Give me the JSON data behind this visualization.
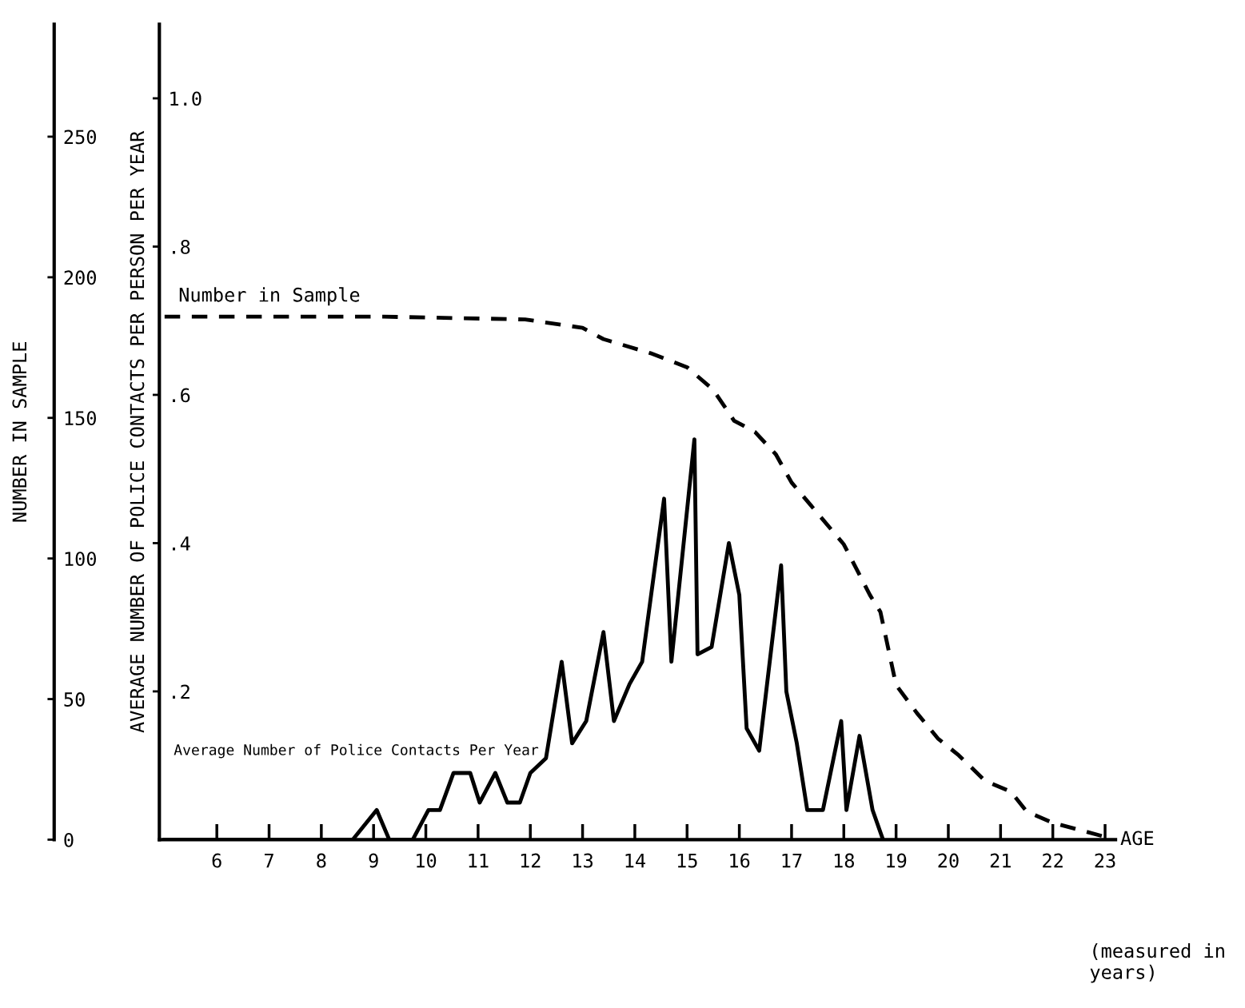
{
  "chart_data": {
    "type": "line",
    "xlabel": "AGE",
    "ylabel": "AVERAGE NUMBER OF POLICE CONTACTS PER PERSON PER YEAR",
    "y2label": "NUMBER IN SAMPLE",
    "annotations": [
      "(measured in years)"
    ],
    "xlim": [
      4.9,
      23.2
    ],
    "xticks": [
      6,
      7,
      8,
      9,
      10,
      11,
      12,
      13,
      14,
      15,
      16,
      17,
      18,
      19,
      20,
      21,
      22,
      23
    ],
    "ylim": [
      0,
      1.1
    ],
    "yticks": [
      {
        "value": 0.2,
        "label": ".2"
      },
      {
        "value": 0.4,
        "label": ".4"
      },
      {
        "value": 0.6,
        "label": ".6"
      },
      {
        "value": 0.8,
        "label": ".8"
      },
      {
        "value": 1.0,
        "label": "1.0"
      }
    ],
    "y2lim": [
      0,
      290
    ],
    "y2ticks": [
      0,
      50,
      100,
      150,
      200,
      250
    ],
    "grid": false,
    "legend": false,
    "series": [
      {
        "name": "Average Number of Police Contacts Per Year",
        "color": "#000000",
        "line_style": "solid",
        "x": [
          5.0,
          8.6,
          9.06,
          9.3,
          9.75,
          10.05,
          10.27,
          10.53,
          10.85,
          11.03,
          11.33,
          11.56,
          11.8,
          12.0,
          12.3,
          12.6,
          12.8,
          13.07,
          13.4,
          13.6,
          13.9,
          14.14,
          14.56,
          14.7,
          15.14,
          15.2,
          15.47,
          15.8,
          16.0,
          16.14,
          16.38,
          16.8,
          16.9,
          17.1,
          17.3,
          17.6,
          17.95,
          18.05,
          18.3,
          18.55,
          18.75
        ],
        "values": [
          0,
          0,
          0.04,
          0,
          0,
          0.04,
          0.04,
          0.09,
          0.09,
          0.05,
          0.09,
          0.05,
          0.05,
          0.09,
          0.11,
          0.24,
          0.13,
          0.16,
          0.28,
          0.16,
          0.21,
          0.24,
          0.46,
          0.24,
          0.54,
          0.25,
          0.26,
          0.4,
          0.33,
          0.15,
          0.12,
          0.37,
          0.2,
          0.13,
          0.04,
          0.04,
          0.16,
          0.04,
          0.14,
          0.04,
          0
        ]
      },
      {
        "name": "Number in Sample",
        "color": "#000000",
        "line_style": "dashed",
        "axis": "y2",
        "x": [
          5.0,
          9.2,
          11.9,
          13.0,
          13.4,
          14.3,
          15.0,
          15.5,
          15.9,
          16.3,
          16.7,
          17.0,
          17.5,
          18.0,
          18.5,
          18.7,
          19.0,
          19.4,
          19.8,
          20.2,
          20.7,
          21.2,
          21.5,
          22.0,
          23.0
        ],
        "values": [
          186,
          186,
          185,
          182,
          178,
          173,
          168,
          160,
          149,
          145,
          137,
          127,
          116,
          105,
          87,
          81,
          55,
          45,
          36,
          30,
          21,
          17,
          10,
          6,
          1
        ]
      }
    ]
  }
}
